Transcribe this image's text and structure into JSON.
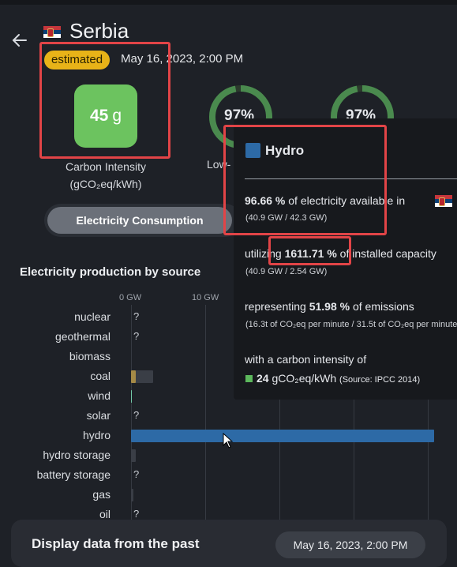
{
  "header": {
    "country": "Serbia",
    "status_badge": "estimated",
    "datetime": "May 16, 2023, 2:00 PM"
  },
  "carbon_intensity": {
    "value": "45",
    "unit": "g",
    "label": "Carbon Intensity",
    "unit_label": "(gCO₂eq/kWh)",
    "tile_color": "#6cc35f"
  },
  "low_carbon": {
    "percent": "97%",
    "ring_fill": 0.97,
    "label": "Low-"
  },
  "renewable": {
    "percent": "97%",
    "ring_fill": 0.97
  },
  "toggle": {
    "active_label": "Electricity Consumption"
  },
  "chart": {
    "title": "Electricity production by source",
    "ticks": [
      "0 GW",
      "10 GW"
    ],
    "sources": [
      {
        "name": "nuclear",
        "value_gw": null,
        "unknown": "?"
      },
      {
        "name": "geothermal",
        "value_gw": null,
        "unknown": "?"
      },
      {
        "name": "biomass",
        "value_gw": 0
      },
      {
        "name": "coal",
        "value_gw": 0.6,
        "capacity_gw": 3.0,
        "color": "#a58a46"
      },
      {
        "name": "wind",
        "value_gw": 0.15,
        "color": "#72c9a7"
      },
      {
        "name": "solar",
        "value_gw": null,
        "unknown": "?"
      },
      {
        "name": "hydro",
        "value_gw": 40.9,
        "capacity_gw": 2.54,
        "color": "#2d6aa6"
      },
      {
        "name": "hydro storage",
        "value_gw": 0,
        "capacity_gw": 0.6
      },
      {
        "name": "battery storage",
        "value_gw": null,
        "unknown": "?"
      },
      {
        "name": "gas",
        "value_gw": 0,
        "capacity_gw": 0.35
      },
      {
        "name": "oil",
        "value_gw": null,
        "unknown": "?"
      }
    ]
  },
  "tooltip": {
    "source": "Hydro",
    "source_color": "#2d6aa6",
    "share_pct": "96.66 %",
    "share_text": "of electricity available in",
    "share_detail": "(40.9 GW / 42.3 GW)",
    "util_prefix": "utilizing",
    "util_pct": "1611.71 %",
    "util_text": "of installed capacity",
    "util_detail": "(40.9 GW / 2.54 GW)",
    "emis_prefix": "representing",
    "emis_pct": "51.98 %",
    "emis_text": "of emissions",
    "emis_detail": "(16.3t of CO₂eq per minute / 31.5t of CO₂eq per minute)",
    "ci_prefix": "with a carbon intensity of",
    "ci_value": "24",
    "ci_unit": "gCO₂eq/kWh",
    "ci_source": "(Source: IPCC 2014)",
    "ci_color": "#5cb85c"
  },
  "past": {
    "title": "Display data from the past",
    "date": "May 16, 2023, 2:00 PM"
  }
}
